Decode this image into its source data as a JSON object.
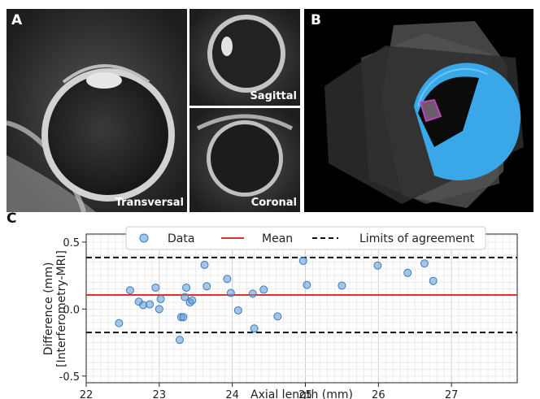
{
  "figure": {
    "panel_a_label": "A",
    "panel_b_label": "B",
    "panel_c_label": "C",
    "views": {
      "transversal": "Transversal",
      "sagittal": "Sagittal",
      "coronal": "Coronal"
    },
    "colors": {
      "mri_bg": "#2b2b2b",
      "segmentation": "#3aa7e8",
      "lens_outline": "#c23fc0"
    }
  },
  "chart_data": {
    "type": "scatter",
    "xlabel": "Axial length (mm)",
    "ylabel_line1": "Difference (mm)",
    "ylabel_line2": "[Interferometry-MRI]",
    "xlim": [
      22,
      27.9
    ],
    "ylim": [
      -0.55,
      0.56
    ],
    "xticks": [
      22,
      23,
      24,
      25,
      26,
      27
    ],
    "yticks": [
      -0.5,
      0.0,
      0.5
    ],
    "xtick_labels": [
      "22",
      "23",
      "24",
      "25",
      "26",
      "27"
    ],
    "ytick_labels": [
      "-0.5",
      "0.0",
      "0.5"
    ],
    "mean": 0.105,
    "loa_upper": 0.385,
    "loa_lower": -0.175,
    "grid": true,
    "legend": {
      "placement": "top",
      "entries": [
        "Data",
        "Mean",
        "Limits of agreement"
      ]
    },
    "colors": {
      "data": "#5b9bd5",
      "mean": "#e03131",
      "loa": "#111111"
    },
    "points": [
      {
        "x": 22.45,
        "y": -0.105
      },
      {
        "x": 22.6,
        "y": 0.14
      },
      {
        "x": 22.72,
        "y": 0.055
      },
      {
        "x": 22.78,
        "y": 0.03
      },
      {
        "x": 22.87,
        "y": 0.035
      },
      {
        "x": 22.95,
        "y": 0.16
      },
      {
        "x": 23.0,
        "y": 0.0
      },
      {
        "x": 23.02,
        "y": 0.075
      },
      {
        "x": 23.28,
        "y": -0.23
      },
      {
        "x": 23.3,
        "y": -0.06
      },
      {
        "x": 23.33,
        "y": -0.06
      },
      {
        "x": 23.35,
        "y": 0.09
      },
      {
        "x": 23.37,
        "y": 0.16
      },
      {
        "x": 23.42,
        "y": 0.05
      },
      {
        "x": 23.45,
        "y": 0.065
      },
      {
        "x": 23.62,
        "y": 0.33
      },
      {
        "x": 23.65,
        "y": 0.17
      },
      {
        "x": 23.93,
        "y": 0.225
      },
      {
        "x": 23.98,
        "y": 0.12
      },
      {
        "x": 24.08,
        "y": -0.01
      },
      {
        "x": 24.28,
        "y": 0.115
      },
      {
        "x": 24.3,
        "y": -0.145
      },
      {
        "x": 24.43,
        "y": 0.145
      },
      {
        "x": 24.62,
        "y": -0.055
      },
      {
        "x": 24.97,
        "y": 0.36
      },
      {
        "x": 25.02,
        "y": 0.18
      },
      {
        "x": 25.5,
        "y": 0.175
      },
      {
        "x": 25.99,
        "y": 0.325
      },
      {
        "x": 26.4,
        "y": 0.27
      },
      {
        "x": 26.63,
        "y": 0.34
      },
      {
        "x": 26.75,
        "y": 0.21
      }
    ]
  }
}
